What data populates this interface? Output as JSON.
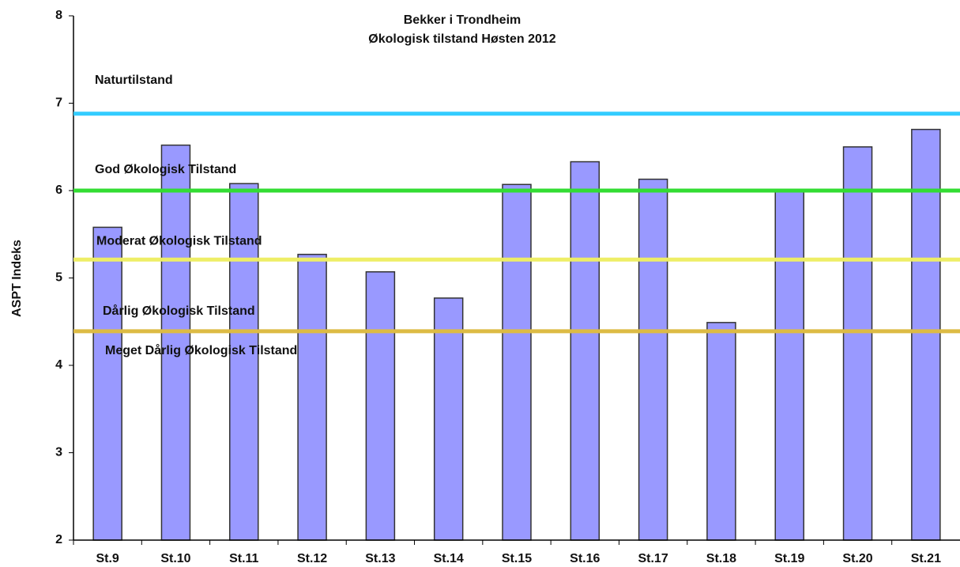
{
  "chart_data": {
    "type": "bar",
    "title": "Bekker i Trondheim",
    "subtitle": "Økologisk tilstand Høsten 2012",
    "y_label": "ASPT Indeks",
    "categories": [
      "St.9",
      "St.10",
      "St.11",
      "St.12",
      "St.13",
      "St.14",
      "St.15",
      "St.16",
      "St.17",
      "St.18",
      "St.19",
      "St.20",
      "St.21"
    ],
    "values": [
      5.58,
      6.52,
      6.08,
      5.27,
      5.07,
      4.77,
      6.07,
      6.33,
      6.13,
      4.49,
      6.0,
      6.5,
      6.7
    ],
    "color": "#9999ff",
    "ylim": [
      2,
      8
    ],
    "yticks": [
      2,
      3,
      4,
      5,
      6,
      7,
      8
    ],
    "grid": false,
    "reference_lines": [
      {
        "label": "Naturtilstand",
        "value": 6.88,
        "color": "#33ccff"
      },
      {
        "label": "God Økologisk Tilstand",
        "value": 6.0,
        "color": "#33dd33"
      },
      {
        "label": "Moderat Økologisk Tilstand",
        "value": 5.21,
        "color": "#eeee66"
      },
      {
        "label": "Dårlig Økologisk Tilstand",
        "value": 4.39,
        "color": "#ddbb44"
      }
    ],
    "annotations": [
      "Meget Dårlig Økologisk Tilstand"
    ]
  }
}
